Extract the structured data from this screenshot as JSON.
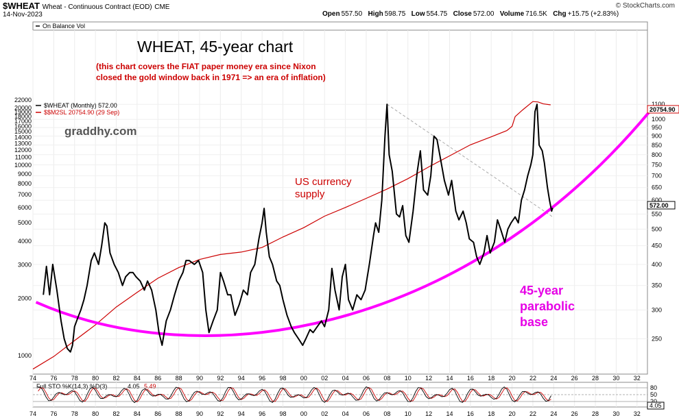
{
  "header": {
    "symbol": "$WHEAT",
    "description": "Wheat - Continuous Contract (EOD)",
    "exchange": "CME",
    "date": "14-Nov-2023",
    "open_label": "Open",
    "open": "557.50",
    "high_label": "High",
    "high": "598.75",
    "low_label": "Low",
    "low": "554.75",
    "close_label": "Close",
    "close": "572.00",
    "volume_label": "Volume",
    "volume": "716.5K",
    "chg_label": "Chg",
    "chg": "+15.75 (+2.83%)",
    "credit": "© StockCharts.com"
  },
  "indicators": {
    "obv_label": "On Balance Vol",
    "price_legend": "$WHEAT (Monthly) 572.00",
    "m2_legend": "$$M2SL 20754.90 (29 Sep)",
    "sto_label": "Full STO %K(14,3) %D(3)",
    "sto_k": "4.05",
    "sto_d": "5.49"
  },
  "annotations": {
    "title": "WHEAT, 45-year chart",
    "subtitle_line1": "(this chart covers the FIAT paper money era since Nixon",
    "subtitle_line2": "closed the gold window back in 1971 => an era of inflation)",
    "watermark": "graddhy.com",
    "currency_line1": "US currency",
    "currency_line2": "supply",
    "base_line1": "45-year",
    "base_line2": "parabolic",
    "base_line3": "base"
  },
  "badges": {
    "m2_value": "20754.90",
    "price_value": "572.00"
  },
  "colors": {
    "price": "#000000",
    "m2": "#cc0000",
    "parabola": "#ff00ff",
    "trendline": "#aaaaaa",
    "annotation_red": "#cc0000",
    "annotation_magenta": "#e600e6",
    "grid": "#e8e8e8"
  },
  "chart_data": {
    "type": "line",
    "x_unit": "year",
    "x_tick_labels": [
      "74",
      "76",
      "78",
      "80",
      "82",
      "84",
      "86",
      "88",
      "90",
      "92",
      "94",
      "96",
      "98",
      "00",
      "02",
      "04",
      "06",
      "08",
      "10",
      "12",
      "14",
      "16",
      "18",
      "20",
      "22",
      "24",
      "26",
      "28",
      "30",
      "32"
    ],
    "x_range": [
      1974,
      2033
    ],
    "y_left": {
      "label": "M2SL",
      "scale": "log",
      "range": [
        800,
        22000
      ],
      "ticks": [
        "1000",
        "2000",
        "3000",
        "4000",
        "5000",
        "6000",
        "7000",
        "8000",
        "9000",
        "10000",
        "11000",
        "12000",
        "13000",
        "14000",
        "15000",
        "16000",
        "17000",
        "18000",
        "19000",
        "20000",
        "22000"
      ]
    },
    "y_right": {
      "label": "$WHEAT",
      "scale": "log",
      "range": [
        200,
        1130
      ],
      "ticks": [
        "250",
        "300",
        "350",
        "400",
        "450",
        "500",
        "550",
        "600",
        "650",
        "700",
        "750",
        "800",
        "850",
        "900",
        "950",
        "1000",
        "1100"
      ]
    },
    "series": [
      {
        "name": "$WHEAT (Monthly)",
        "axis": "right",
        "points": [
          [
            1975.0,
            330
          ],
          [
            1975.3,
            395
          ],
          [
            1975.6,
            330
          ],
          [
            1975.9,
            400
          ],
          [
            1976.3,
            340
          ],
          [
            1976.7,
            280
          ],
          [
            1977.0,
            250
          ],
          [
            1977.3,
            235
          ],
          [
            1977.6,
            230
          ],
          [
            1977.8,
            240
          ],
          [
            1978.0,
            270
          ],
          [
            1978.3,
            285
          ],
          [
            1978.6,
            300
          ],
          [
            1978.9,
            320
          ],
          [
            1979.2,
            350
          ],
          [
            1979.6,
            410
          ],
          [
            1979.9,
            430
          ],
          [
            1980.3,
            400
          ],
          [
            1980.6,
            450
          ],
          [
            1980.9,
            520
          ],
          [
            1981.1,
            510
          ],
          [
            1981.4,
            430
          ],
          [
            1981.8,
            400
          ],
          [
            1982.2,
            380
          ],
          [
            1982.6,
            350
          ],
          [
            1982.9,
            370
          ],
          [
            1983.3,
            380
          ],
          [
            1983.6,
            380
          ],
          [
            1983.9,
            370
          ],
          [
            1984.3,
            360
          ],
          [
            1984.7,
            340
          ],
          [
            1985.0,
            360
          ],
          [
            1985.4,
            340
          ],
          [
            1985.8,
            300
          ],
          [
            1986.1,
            260
          ],
          [
            1986.4,
            240
          ],
          [
            1986.8,
            280
          ],
          [
            1987.2,
            300
          ],
          [
            1987.6,
            330
          ],
          [
            1988.0,
            360
          ],
          [
            1988.4,
            380
          ],
          [
            1988.7,
            410
          ],
          [
            1989.0,
            410
          ],
          [
            1989.5,
            400
          ],
          [
            1989.9,
            410
          ],
          [
            1990.3,
            380
          ],
          [
            1990.6,
            300
          ],
          [
            1990.9,
            260
          ],
          [
            1991.3,
            280
          ],
          [
            1991.7,
            300
          ],
          [
            1992.0,
            380
          ],
          [
            1992.3,
            360
          ],
          [
            1992.7,
            330
          ],
          [
            1993.0,
            330
          ],
          [
            1993.4,
            290
          ],
          [
            1993.8,
            310
          ],
          [
            1994.2,
            340
          ],
          [
            1994.6,
            330
          ],
          [
            1994.9,
            380
          ],
          [
            1995.3,
            400
          ],
          [
            1995.7,
            470
          ],
          [
            1996.0,
            520
          ],
          [
            1996.2,
            570
          ],
          [
            1996.4,
            490
          ],
          [
            1996.7,
            420
          ],
          [
            1997.0,
            400
          ],
          [
            1997.4,
            360
          ],
          [
            1997.7,
            350
          ],
          [
            1998.0,
            320
          ],
          [
            1998.4,
            290
          ],
          [
            1998.8,
            270
          ],
          [
            1999.1,
            260
          ],
          [
            1999.5,
            250
          ],
          [
            1999.9,
            240
          ],
          [
            2000.2,
            250
          ],
          [
            2000.6,
            265
          ],
          [
            2000.9,
            260
          ],
          [
            2001.3,
            270
          ],
          [
            2001.7,
            280
          ],
          [
            2002.0,
            270
          ],
          [
            2002.4,
            300
          ],
          [
            2002.7,
            390
          ],
          [
            2003.0,
            340
          ],
          [
            2003.4,
            300
          ],
          [
            2003.7,
            370
          ],
          [
            2004.0,
            400
          ],
          [
            2004.3,
            320
          ],
          [
            2004.7,
            300
          ],
          [
            2005.1,
            330
          ],
          [
            2005.5,
            320
          ],
          [
            2005.9,
            340
          ],
          [
            2006.3,
            400
          ],
          [
            2006.7,
            480
          ],
          [
            2006.9,
            520
          ],
          [
            2007.2,
            490
          ],
          [
            2007.5,
            600
          ],
          [
            2007.8,
            900
          ],
          [
            2008.0,
            1100
          ],
          [
            2008.2,
            800
          ],
          [
            2008.5,
            720
          ],
          [
            2008.9,
            550
          ],
          [
            2009.2,
            540
          ],
          [
            2009.5,
            580
          ],
          [
            2009.8,
            480
          ],
          [
            2010.1,
            460
          ],
          [
            2010.5,
            560
          ],
          [
            2010.9,
            720
          ],
          [
            2011.2,
            820
          ],
          [
            2011.5,
            640
          ],
          [
            2011.9,
            620
          ],
          [
            2012.2,
            700
          ],
          [
            2012.5,
            900
          ],
          [
            2012.8,
            880
          ],
          [
            2013.2,
            760
          ],
          [
            2013.5,
            680
          ],
          [
            2013.9,
            620
          ],
          [
            2014.2,
            680
          ],
          [
            2014.6,
            560
          ],
          [
            2014.9,
            530
          ],
          [
            2015.3,
            560
          ],
          [
            2015.6,
            520
          ],
          [
            2015.9,
            470
          ],
          [
            2016.3,
            460
          ],
          [
            2016.6,
            420
          ],
          [
            2016.9,
            400
          ],
          [
            2017.3,
            430
          ],
          [
            2017.6,
            480
          ],
          [
            2017.9,
            430
          ],
          [
            2018.3,
            460
          ],
          [
            2018.6,
            530
          ],
          [
            2018.9,
            500
          ],
          [
            2019.3,
            460
          ],
          [
            2019.6,
            500
          ],
          [
            2019.9,
            520
          ],
          [
            2020.3,
            540
          ],
          [
            2020.6,
            520
          ],
          [
            2020.9,
            600
          ],
          [
            2021.2,
            640
          ],
          [
            2021.5,
            700
          ],
          [
            2021.8,
            750
          ],
          [
            2022.0,
            800
          ],
          [
            2022.2,
            1050
          ],
          [
            2022.4,
            1100
          ],
          [
            2022.6,
            850
          ],
          [
            2022.9,
            820
          ],
          [
            2023.1,
            760
          ],
          [
            2023.4,
            650
          ],
          [
            2023.6,
            600
          ],
          [
            2023.8,
            560
          ],
          [
            2023.9,
            572
          ]
        ]
      },
      {
        "name": "$$M2SL",
        "axis": "left",
        "points": [
          [
            1974.0,
            850
          ],
          [
            1976.0,
            990
          ],
          [
            1978.0,
            1200
          ],
          [
            1980.0,
            1450
          ],
          [
            1982.0,
            1800
          ],
          [
            1984.0,
            2150
          ],
          [
            1986.0,
            2550
          ],
          [
            1988.0,
            2900
          ],
          [
            1990.0,
            3200
          ],
          [
            1992.0,
            3400
          ],
          [
            1994.0,
            3500
          ],
          [
            1996.0,
            3700
          ],
          [
            1998.0,
            4200
          ],
          [
            2000.0,
            4700
          ],
          [
            2002.0,
            5400
          ],
          [
            2004.0,
            6000
          ],
          [
            2006.0,
            6700
          ],
          [
            2008.0,
            7500
          ],
          [
            2010.0,
            8500
          ],
          [
            2012.0,
            9800
          ],
          [
            2014.0,
            11200
          ],
          [
            2016.0,
            12800
          ],
          [
            2018.0,
            14100
          ],
          [
            2019.5,
            15200
          ],
          [
            2020.0,
            16000
          ],
          [
            2020.3,
            18000
          ],
          [
            2021.0,
            19500
          ],
          [
            2022.0,
            21600
          ],
          [
            2022.5,
            21500
          ],
          [
            2023.0,
            21000
          ],
          [
            2023.7,
            20755
          ]
        ]
      }
    ]
  }
}
